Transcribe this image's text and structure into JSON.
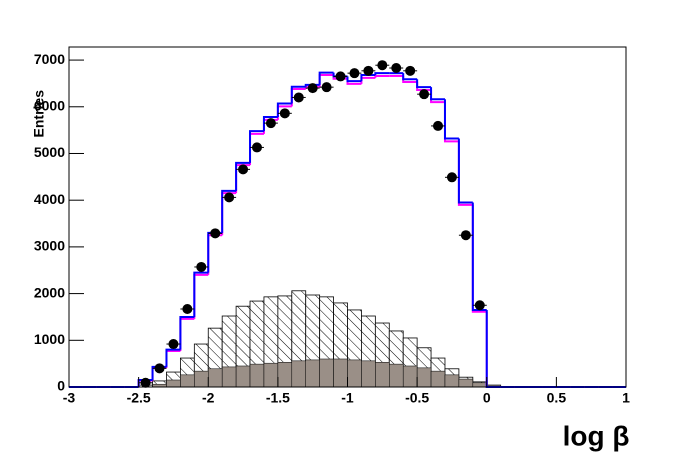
{
  "chart_data": {
    "type": "histogram",
    "x_label": "log β",
    "y_label": "Entries",
    "bins": [
      -3,
      -2.9,
      -2.8,
      -2.7,
      -2.6,
      -2.5,
      -2.4,
      -2.3,
      -2.2,
      -2.1,
      -2,
      -1.9,
      -1.8,
      -1.7,
      -1.6,
      -1.5,
      -1.4,
      -1.3,
      -1.2,
      -1.1,
      -1,
      -0.9,
      -0.8,
      -0.7,
      -0.6,
      -0.5,
      -0.4,
      -0.3,
      -0.2,
      -0.1,
      0,
      0.1,
      0.2,
      0.3,
      0.4,
      0.5,
      0.6,
      0.7,
      0.8,
      0.9,
      1
    ],
    "series": [
      {
        "style": "hatched",
        "color": "#000000",
        "values": [
          0,
          0,
          0,
          0,
          0,
          40,
          130,
          320,
          620,
          920,
          1260,
          1520,
          1730,
          1840,
          1930,
          1950,
          2060,
          1970,
          1930,
          1800,
          1650,
          1520,
          1370,
          1200,
          1050,
          840,
          620,
          390,
          210,
          110,
          40,
          0,
          0,
          0,
          0,
          0,
          0,
          0,
          0,
          0
        ]
      },
      {
        "style": "filled",
        "color": "#9a8f87",
        "values": [
          0,
          0,
          0,
          0,
          0,
          0,
          60,
          150,
          260,
          340,
          390,
          430,
          450,
          490,
          510,
          530,
          560,
          580,
          600,
          600,
          580,
          560,
          530,
          490,
          450,
          410,
          340,
          260,
          170,
          90,
          40,
          0,
          0,
          0,
          0,
          0,
          0,
          0,
          0,
          0
        ]
      },
      {
        "style": "step",
        "color": "#ff00ff",
        "values": [
          0,
          0,
          0,
          0,
          0,
          140,
          410,
          770,
          1460,
          2400,
          3250,
          4150,
          4750,
          5420,
          5720,
          6010,
          6380,
          6420,
          6680,
          6600,
          6490,
          6620,
          6660,
          6660,
          6530,
          6360,
          6100,
          5260,
          3900,
          1610,
          0,
          0,
          0,
          0,
          0,
          0,
          0,
          0,
          0,
          0
        ]
      },
      {
        "style": "step",
        "color": "#0000ff",
        "values": [
          0,
          0,
          0,
          0,
          0,
          150,
          430,
          800,
          1500,
          2450,
          3300,
          4200,
          4800,
          5480,
          5780,
          6070,
          6430,
          6470,
          6730,
          6650,
          6550,
          6680,
          6720,
          6720,
          6590,
          6420,
          6160,
          5320,
          3950,
          1650,
          0,
          0,
          0,
          0,
          0,
          0,
          0,
          0,
          0,
          0
        ]
      },
      {
        "style": "points",
        "color": "#000000",
        "values": [
          null,
          null,
          null,
          null,
          null,
          90,
          400,
          920,
          1670,
          2570,
          3290,
          4060,
          4660,
          5130,
          5650,
          5860,
          6200,
          6400,
          6420,
          6650,
          6720,
          6770,
          6890,
          6830,
          6770,
          6270,
          5590,
          4490,
          3250,
          1750,
          null,
          null,
          null,
          null,
          null,
          null,
          null,
          null,
          null,
          null
        ]
      }
    ],
    "xlim": [
      -3,
      1
    ],
    "xticks": [
      -3,
      -2.5,
      -2,
      -1.5,
      -1,
      -0.5,
      0,
      0.5,
      1
    ],
    "ylim": [
      0,
      7280
    ],
    "yticks": [
      0,
      1000,
      2000,
      3000,
      4000,
      5000,
      6000,
      7000
    ]
  }
}
